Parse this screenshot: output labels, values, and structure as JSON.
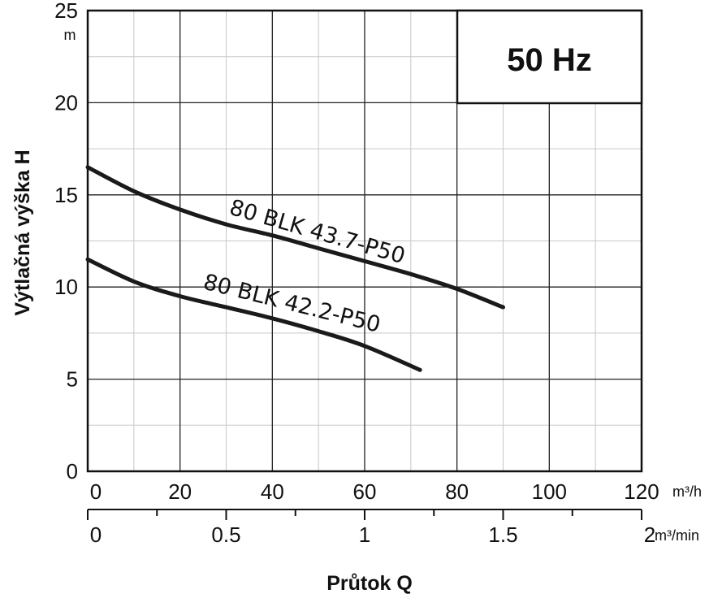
{
  "chart_data": {
    "type": "line",
    "frequency_label": "50 Hz",
    "ylabel": "Výtlačná výška H",
    "yunit": "m",
    "ylim": [
      0,
      25
    ],
    "yticks": [
      "0",
      "5",
      "10",
      "15",
      "20",
      "25"
    ],
    "xlabel": "Průtok Q",
    "xunit_primary": "m³/h",
    "xlim_primary": [
      0,
      120
    ],
    "xticks_primary": [
      "0",
      "20",
      "40",
      "60",
      "80",
      "100",
      "120"
    ],
    "xunit_secondary": "m³/min",
    "xlim_secondary": [
      0,
      2
    ],
    "xticks_secondary": [
      "0",
      "0.5",
      "1",
      "1.5",
      "2"
    ],
    "grid": true,
    "series": [
      {
        "name": "80 BLK 43.7-P50",
        "x": [
          0,
          10,
          20,
          30,
          40,
          50,
          60,
          70,
          80,
          90
        ],
        "y": [
          16.5,
          15.2,
          14.2,
          13.4,
          12.8,
          12.1,
          11.4,
          10.7,
          9.9,
          8.9
        ]
      },
      {
        "name": "80 BLK 42.2-P50",
        "x": [
          0,
          10,
          20,
          30,
          40,
          50,
          60,
          72
        ],
        "y": [
          11.5,
          10.3,
          9.5,
          8.9,
          8.3,
          7.6,
          6.8,
          5.5
        ]
      }
    ]
  }
}
